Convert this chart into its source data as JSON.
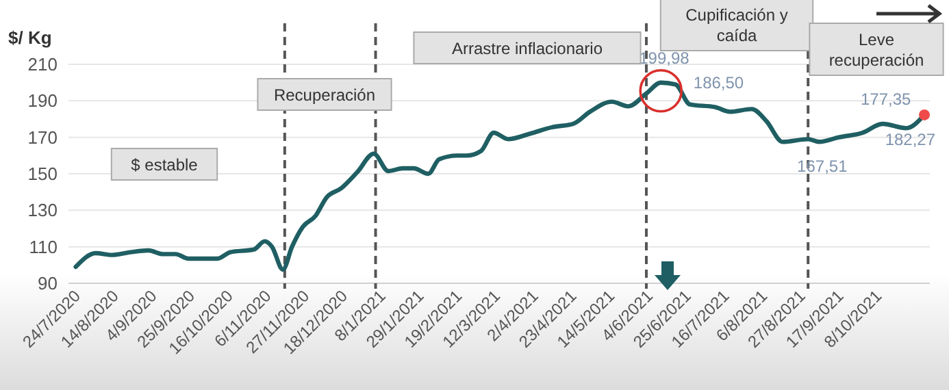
{
  "chart_data": {
    "type": "line",
    "ylabel": "$/ Kg",
    "x": [
      "2020-07-24",
      "2020-08-04",
      "2020-08-13",
      "2020-08-23",
      "2020-09-02",
      "2020-09-10",
      "2020-09-17",
      "2020-09-24",
      "2020-10-10",
      "2020-10-17",
      "2020-10-30",
      "2020-11-05",
      "2020-11-09",
      "2020-11-15",
      "2020-11-20",
      "2020-11-26",
      "2020-12-03",
      "2020-12-09",
      "2020-12-17",
      "2020-12-26",
      "2021-01-04",
      "2021-01-12",
      "2021-01-20",
      "2021-01-26",
      "2021-02-03",
      "2021-02-09",
      "2021-02-19",
      "2021-02-24",
      "2021-03-04",
      "2021-03-11",
      "2021-03-19",
      "2021-03-31",
      "2021-04-12",
      "2021-04-24",
      "2021-05-03",
      "2021-05-15",
      "2021-05-24",
      "2021-06-03",
      "2021-06-11",
      "2021-06-19",
      "2021-06-27",
      "2021-07-11",
      "2021-07-19",
      "2021-07-31",
      "2021-08-08",
      "2021-08-17",
      "2021-08-31",
      "2021-09-06",
      "2021-09-17",
      "2021-09-30",
      "2021-10-11",
      "2021-10-24",
      "2021-11-03"
    ],
    "series": [
      {
        "color": "#1f5f63",
        "values": [
          99,
          106.5,
          105.5,
          107,
          108,
          106,
          106,
          103.5,
          103.5,
          107,
          108.5,
          113,
          110,
          97.5,
          110,
          121,
          127,
          137,
          142,
          151,
          161,
          151.5,
          153,
          153,
          150,
          158,
          160,
          160,
          162.5,
          172.5,
          169,
          172,
          175.5,
          177.5,
          184,
          189.5,
          187,
          194,
          199.98,
          199,
          188,
          186.5,
          184,
          185.5,
          179,
          167.5,
          169,
          167.51,
          170,
          172.5,
          177.35,
          175,
          182.27
        ],
        "value_labels": [
          null,
          null,
          null,
          null,
          null,
          null,
          null,
          null,
          null,
          null,
          null,
          null,
          null,
          null,
          null,
          null,
          null,
          null,
          null,
          null,
          null,
          null,
          null,
          null,
          null,
          null,
          null,
          null,
          null,
          null,
          null,
          null,
          null,
          null,
          null,
          null,
          null,
          null,
          "199,98",
          null,
          null,
          "186,50",
          null,
          null,
          null,
          null,
          null,
          "167,51",
          null,
          null,
          "177,35",
          null,
          "182,27"
        ]
      }
    ],
    "xlim": [
      "2020-07-20",
      "2021-11-06"
    ],
    "xticks": [
      {
        "value": "2020-07-24",
        "label": "24/7/2020"
      },
      {
        "value": "2020-08-14",
        "label": "14/8/2020"
      },
      {
        "value": "2020-09-04",
        "label": "4/9/2020"
      },
      {
        "value": "2020-09-25",
        "label": "25/9/2020"
      },
      {
        "value": "2020-10-16",
        "label": "16/10/2020"
      },
      {
        "value": "2020-11-06",
        "label": "6/11/2020"
      },
      {
        "value": "2020-11-27",
        "label": "27/11/2020"
      },
      {
        "value": "2020-12-18",
        "label": "18/12/2020"
      },
      {
        "value": "2021-01-08",
        "label": "8/1/2021"
      },
      {
        "value": "2021-01-29",
        "label": "29/1/2021"
      },
      {
        "value": "2021-02-19",
        "label": "19/2/2021"
      },
      {
        "value": "2021-03-12",
        "label": "12/3/2021"
      },
      {
        "value": "2021-04-02",
        "label": "2/4/2021"
      },
      {
        "value": "2021-04-23",
        "label": "23/4/2021"
      },
      {
        "value": "2021-05-14",
        "label": "14/5/2021"
      },
      {
        "value": "2021-06-04",
        "label": "4/6/2021"
      },
      {
        "value": "2021-06-25",
        "label": "25/6/2021"
      },
      {
        "value": "2021-07-16",
        "label": "16/7/2021"
      },
      {
        "value": "2021-08-06",
        "label": "6/8/2021"
      },
      {
        "value": "2021-08-27",
        "label": "27/8/2021"
      },
      {
        "value": "2021-09-17",
        "label": "17/9/2021"
      },
      {
        "value": "2021-10-08",
        "label": "8/10/2021"
      }
    ],
    "ylim": [
      90,
      210
    ],
    "yticks": [
      90,
      110,
      130,
      150,
      170,
      190,
      210
    ],
    "grid": "y",
    "marker": "none",
    "line_style": "solid",
    "ref_lines": [
      {
        "axis": "x",
        "value": "2020-11-16",
        "color": "#555555",
        "line_style": "dashed"
      },
      {
        "axis": "x",
        "value": "2021-01-05",
        "color": "#555555",
        "line_style": "dashed"
      },
      {
        "axis": "x",
        "value": "2021-06-03",
        "color": "#555555",
        "line_style": "dashed"
      },
      {
        "axis": "x",
        "value": "2021-08-31",
        "color": "#555555",
        "line_style": "dashed"
      }
    ],
    "annotations": [
      "$ estable",
      "Recuperación",
      "Arrastre inflacionario",
      "Cupificación y\ncaída",
      "Leve\nrecuperación"
    ]
  }
}
